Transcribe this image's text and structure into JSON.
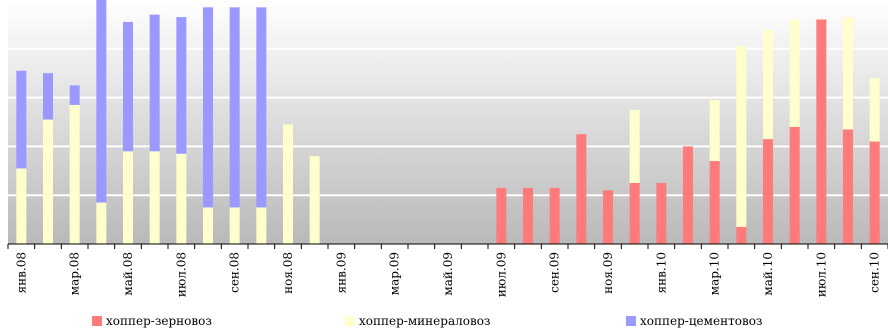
{
  "chart_data": {
    "type": "bar",
    "stacked": true,
    "title": "",
    "xlabel": "",
    "ylabel": "",
    "ylim": [
      0,
      10
    ],
    "y_ticks_labeled": false,
    "grid": true,
    "legend_position": "bottom",
    "x": [
      "янв.08",
      "фев.08",
      "мар.08",
      "апр.08",
      "май.08",
      "июн.08",
      "июл.08",
      "авг.08",
      "сен.08",
      "окт.08",
      "ноя.08",
      "дек.08",
      "янв.09",
      "фев.09",
      "мар.09",
      "апр.09",
      "май.09",
      "июн.09",
      "июл.09",
      "авг.09",
      "сен.09",
      "окт.09",
      "ноя.09",
      "дек.09",
      "янв.10",
      "фев.10",
      "мар.10",
      "апр.10",
      "май.10",
      "июн.10",
      "июл.10",
      "авг.10",
      "сен.10"
    ],
    "tick_labels": [
      "янв.08",
      "мар.08",
      "май.08",
      "июл.08",
      "сен.08",
      "ноя.08",
      "янв.09",
      "мар.09",
      "май.09",
      "июл.09",
      "сен.09",
      "ноя.09",
      "янв.10",
      "мар.10",
      "май.10",
      "июл.10",
      "сен.10"
    ],
    "series": [
      {
        "name": "хоппер-зерновоз",
        "color": "#ff7b7b",
        "values": [
          0,
          0,
          0,
          0,
          0,
          0,
          0,
          0,
          0,
          0,
          0,
          0,
          0,
          0,
          0,
          0,
          0,
          0,
          2.3,
          2.3,
          2.3,
          4.5,
          2.2,
          2.5,
          2.5,
          4.0,
          3.4,
          0.7,
          4.3,
          4.8,
          9.2,
          4.7,
          4.2
        ]
      },
      {
        "name": "хоппер-минераловоз",
        "color": "#ffffcc",
        "values": [
          3.1,
          5.1,
          5.7,
          1.7,
          3.8,
          3.8,
          3.7,
          1.5,
          1.5,
          1.5,
          4.9,
          3.6,
          0,
          0,
          0,
          0,
          0,
          0,
          0,
          0,
          0,
          0,
          0,
          3.0,
          0,
          0,
          2.5,
          7.4,
          4.5,
          4.4,
          0,
          4.6,
          2.6
        ]
      },
      {
        "name": "хоппер-цементовоз",
        "color": "#9999ff",
        "values": [
          4.0,
          1.9,
          0.8,
          8.3,
          5.3,
          5.6,
          5.6,
          8.2,
          8.2,
          8.2,
          0,
          0,
          0,
          0,
          0,
          0,
          0,
          0,
          0,
          0,
          0,
          0,
          0,
          0,
          0,
          0,
          0,
          0,
          0,
          0,
          0,
          0,
          0
        ]
      }
    ]
  }
}
